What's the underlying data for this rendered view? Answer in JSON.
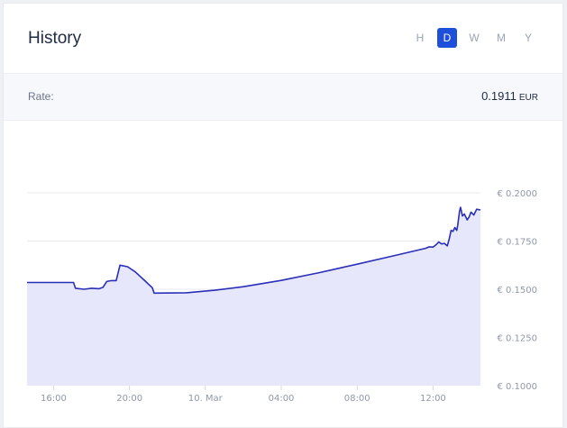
{
  "header": {
    "title": "History",
    "ranges": [
      "H",
      "D",
      "W",
      "M",
      "Y"
    ],
    "active_range": "D"
  },
  "rate": {
    "label": "Rate:",
    "value": "0.1911",
    "unit": "EUR"
  },
  "colors": {
    "accent": "#1e4fd9",
    "line": "#2a2fb8",
    "fill": "#e6e7fa"
  },
  "chart_data": {
    "type": "area",
    "title": "",
    "xlabel": "",
    "ylabel": "",
    "x_tick_labels": [
      "16:00",
      "20:00",
      "10. Mar",
      "04:00",
      "08:00",
      "12:00"
    ],
    "y_tick_labels": [
      "€ 0.1000",
      "€ 0.1250",
      "€ 0.1500",
      "€ 0.1750",
      "€ 0.2000"
    ],
    "y_ticks": [
      0.1,
      0.125,
      0.15,
      0.175,
      0.2
    ],
    "ylim": [
      0.1,
      0.2
    ],
    "x_range_hours": [
      14.6,
      38.5
    ],
    "grid": true,
    "series": [
      {
        "points": [
          [
            14.6,
            0.1535
          ],
          [
            17.05,
            0.1535
          ],
          [
            17.15,
            0.1505
          ],
          [
            17.6,
            0.15
          ],
          [
            18.0,
            0.1505
          ],
          [
            18.4,
            0.1503
          ],
          [
            18.6,
            0.151
          ],
          [
            18.8,
            0.154
          ],
          [
            19.05,
            0.1545
          ],
          [
            19.3,
            0.1545
          ],
          [
            19.5,
            0.1625
          ],
          [
            19.9,
            0.1617
          ],
          [
            20.3,
            0.159
          ],
          [
            20.8,
            0.1545
          ],
          [
            21.2,
            0.1508
          ],
          [
            21.3,
            0.148
          ],
          [
            23.0,
            0.1482
          ],
          [
            24.5,
            0.1495
          ],
          [
            26.0,
            0.1513
          ],
          [
            28.0,
            0.1546
          ],
          [
            30.0,
            0.1586
          ],
          [
            32.0,
            0.163
          ],
          [
            34.0,
            0.1675
          ],
          [
            35.6,
            0.1712
          ],
          [
            35.8,
            0.172
          ],
          [
            36.0,
            0.1718
          ],
          [
            36.15,
            0.173
          ],
          [
            36.3,
            0.1745
          ],
          [
            36.45,
            0.1735
          ],
          [
            36.6,
            0.1738
          ],
          [
            36.75,
            0.1725
          ],
          [
            36.85,
            0.176
          ],
          [
            36.95,
            0.1805
          ],
          [
            37.05,
            0.18
          ],
          [
            37.15,
            0.182
          ],
          [
            37.25,
            0.1805
          ],
          [
            37.3,
            0.183
          ],
          [
            37.4,
            0.1905
          ],
          [
            37.45,
            0.1925
          ],
          [
            37.55,
            0.188
          ],
          [
            37.65,
            0.189
          ],
          [
            37.8,
            0.186
          ],
          [
            37.9,
            0.1875
          ],
          [
            38.0,
            0.19
          ],
          [
            38.15,
            0.1885
          ],
          [
            38.3,
            0.1915
          ],
          [
            38.5,
            0.1911
          ]
        ]
      }
    ]
  }
}
